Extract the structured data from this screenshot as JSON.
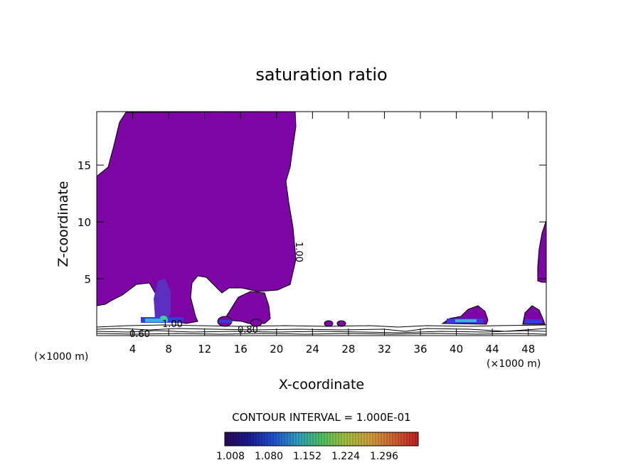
{
  "chart_data": {
    "type": "heatmap",
    "title": "saturation ratio",
    "xlabel": "X-coordinate",
    "ylabel": "Z-coordinate",
    "x_unit_left": "(×1000 m)",
    "x_unit_right": "(×1000 m)",
    "xlim": [
      0,
      50
    ],
    "ylim": [
      0,
      19.7
    ],
    "x_ticks": [
      4,
      8,
      12,
      16,
      20,
      24,
      28,
      32,
      36,
      40,
      44,
      48
    ],
    "y_ticks": [
      5,
      10,
      15
    ],
    "grid": false,
    "contour_interval_text": "CONTOUR INTERVAL = 1.000E-01",
    "contour_labels": [
      "1.00",
      "0.80",
      "0.60",
      "1.00"
    ],
    "colorbar": {
      "min": 1.008,
      "max": 1.296,
      "tick_labels": [
        "1.008",
        "1.080",
        "1.152",
        "1.224",
        "1.296"
      ],
      "colors": [
        "#2a0a5a",
        "#1a1a8c",
        "#2050d0",
        "#30a0c0",
        "#50c060",
        "#a0c040",
        "#d0a040",
        "#d06030",
        "#c02020"
      ]
    },
    "colors": {
      "saturated_region": "#7d05a5",
      "weak_supersat": "#3a3ad8",
      "moderate_supersat": "#30b8d8",
      "high_supersat": "#40d090"
    }
  }
}
